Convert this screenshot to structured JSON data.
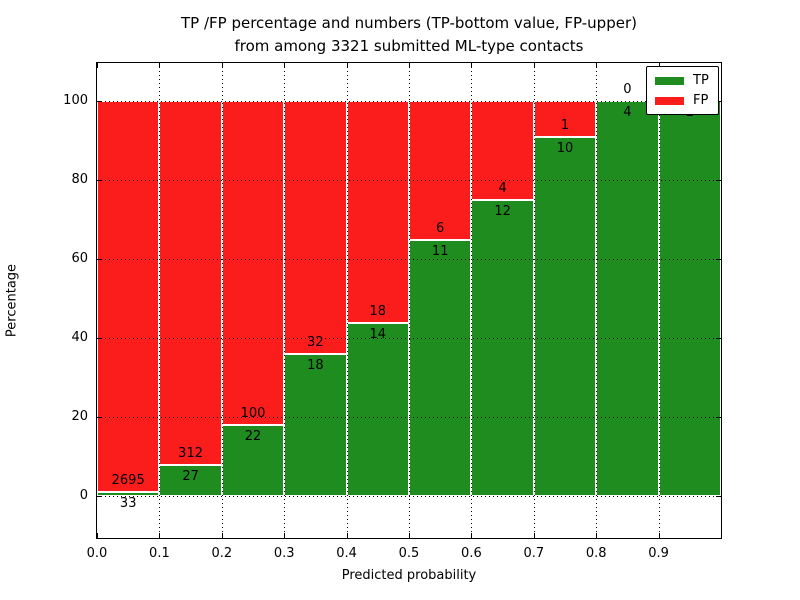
{
  "chart_data": {
    "type": "bar",
    "stacked": true,
    "title_line1": "TP /FP percentage and numbers (TP-bottom value, FP-upper)",
    "title_line2": "from among 3321 submitted ML-type contacts",
    "xlabel": "Predicted probability",
    "ylabel": "Percentage",
    "x_ticks": [
      "0.0",
      "0.1",
      "0.2",
      "0.3",
      "0.4",
      "0.5",
      "0.6",
      "0.7",
      "0.8",
      "0.9"
    ],
    "y_ticks": [
      0,
      20,
      40,
      60,
      80,
      100
    ],
    "ylim": [
      -10.5,
      109.5
    ],
    "xlim": [
      0.0,
      1.0
    ],
    "grid": "dotted, drawn over bars",
    "legend_position": "upper right",
    "bin_width": 0.1,
    "series": [
      {
        "name": "TP",
        "role": "bottom",
        "values": [
          33,
          27,
          22,
          18,
          14,
          11,
          12,
          10,
          4,
          2
        ]
      },
      {
        "name": "FP",
        "role": "upper",
        "values": [
          2695,
          312,
          100,
          32,
          18,
          6,
          4,
          1,
          0,
          0
        ]
      }
    ],
    "bins": [
      {
        "x_start": 0.0,
        "tp": 33,
        "fp": 2695
      },
      {
        "x_start": 0.1,
        "tp": 27,
        "fp": 312
      },
      {
        "x_start": 0.2,
        "tp": 22,
        "fp": 100
      },
      {
        "x_start": 0.3,
        "tp": 18,
        "fp": 32
      },
      {
        "x_start": 0.4,
        "tp": 14,
        "fp": 18
      },
      {
        "x_start": 0.5,
        "tp": 11,
        "fp": 6
      },
      {
        "x_start": 0.6,
        "tp": 12,
        "fp": 4
      },
      {
        "x_start": 0.7,
        "tp": 10,
        "fp": 1
      },
      {
        "x_start": 0.8,
        "tp": 4,
        "fp": 0
      },
      {
        "x_start": 0.9,
        "tp": 2,
        "fp": 0
      }
    ],
    "legend": [
      {
        "label": "TP",
        "color": "#1f8c1f"
      },
      {
        "label": "FP",
        "color": "#fb1c1c"
      }
    ],
    "colors": {
      "tp": "#1f8c1f",
      "fp": "#fb1c1c",
      "text": "#000000",
      "background": "#ffffff"
    }
  }
}
